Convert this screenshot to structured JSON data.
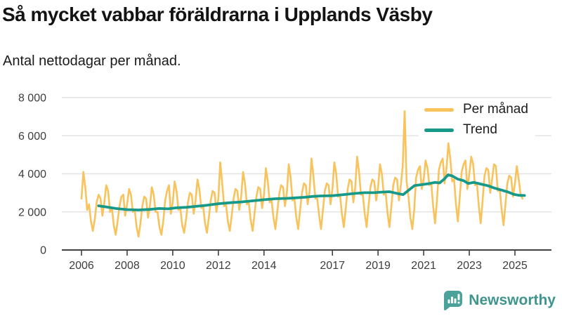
{
  "header": {
    "title": "Så mycket vabbar föräldrarna i Upplands Väsby",
    "subtitle": "Antal nettodagar per månad."
  },
  "chart_data": {
    "type": "line",
    "title": "Så mycket vabbar föräldrarna i Upplands Väsby",
    "ylabel": "Antal nettodagar per månad",
    "x_domain": [
      2006,
      2025.45
    ],
    "y_domain": [
      0,
      8000
    ],
    "grid": "horizontal",
    "legend_position": "top-right",
    "y_ticks": [
      {
        "value": 0,
        "label": "0"
      },
      {
        "value": 2000,
        "label": "2 000"
      },
      {
        "value": 4000,
        "label": "4 000"
      },
      {
        "value": 6000,
        "label": "6 000"
      },
      {
        "value": 8000,
        "label": "8 000"
      }
    ],
    "x_ticks": [
      {
        "value": 2006,
        "label": "2006"
      },
      {
        "value": 2008,
        "label": "2008"
      },
      {
        "value": 2010,
        "label": "2010"
      },
      {
        "value": 2012,
        "label": "2012"
      },
      {
        "value": 2014,
        "label": "2014"
      },
      {
        "value": 2017,
        "label": "2017"
      },
      {
        "value": 2019,
        "label": "2019"
      },
      {
        "value": 2021,
        "label": "2021"
      },
      {
        "value": 2023,
        "label": "2023"
      },
      {
        "value": 2025,
        "label": "2025"
      }
    ],
    "series": [
      {
        "name": "Per månad",
        "color": "#f8c35c",
        "frequency": "monthly",
        "start_year": 2006,
        "start_month": 1,
        "values": [
          2700,
          4100,
          3300,
          2100,
          2400,
          1500,
          1000,
          1600,
          2500,
          2900,
          2700,
          1800,
          2500,
          3400,
          3100,
          2000,
          2200,
          1300,
          800,
          1500,
          2300,
          2800,
          2900,
          1800,
          2400,
          3200,
          2900,
          2000,
          2100,
          1200,
          700,
          1400,
          2300,
          2800,
          2700,
          1700,
          2300,
          3300,
          2900,
          2000,
          2000,
          1200,
          800,
          1500,
          2600,
          3100,
          3400,
          1900,
          2500,
          3600,
          3100,
          2100,
          2200,
          1300,
          900,
          1600,
          2500,
          3000,
          2900,
          1900,
          2600,
          3700,
          3200,
          2200,
          2300,
          1400,
          900,
          1700,
          2600,
          3100,
          3000,
          2000,
          2700,
          4600,
          3500,
          2300,
          2400,
          1500,
          1000,
          1800,
          2700,
          3200,
          3100,
          2100,
          2800,
          4100,
          3500,
          2400,
          2500,
          1600,
          1000,
          1900,
          2800,
          3300,
          3200,
          2200,
          2900,
          4300,
          3600,
          2500,
          2600,
          1700,
          1100,
          2000,
          2900,
          3400,
          3300,
          2300,
          3000,
          4500,
          3800,
          2600,
          2700,
          1700,
          1100,
          2100,
          3000,
          3500,
          3400,
          2400,
          3100,
          4800,
          3900,
          2700,
          2700,
          1800,
          1100,
          2100,
          3100,
          3500,
          3400,
          2400,
          3200,
          4600,
          4000,
          2800,
          2900,
          1900,
          1200,
          2200,
          3200,
          3700,
          3600,
          2500,
          3300,
          4900,
          4100,
          2900,
          2900,
          1900,
          1200,
          2300,
          3300,
          3700,
          3600,
          2600,
          3300,
          4500,
          4000,
          2900,
          3000,
          1900,
          1200,
          2300,
          3400,
          3800,
          3700,
          2600,
          3400,
          4400,
          7300,
          3600,
          2800,
          1700,
          1100,
          2100,
          3800,
          4200,
          4400,
          3200,
          3700,
          4700,
          4300,
          3400,
          3500,
          2300,
          1400,
          2600,
          4200,
          4600,
          4800,
          3500,
          4300,
          5600,
          4800,
          3600,
          3700,
          2400,
          1500,
          2800,
          4100,
          4500,
          4700,
          3200,
          4000,
          4900,
          4500,
          3400,
          3500,
          2300,
          1400,
          2600,
          3900,
          4300,
          4200,
          3000,
          3700,
          4500,
          4400,
          3100,
          3200,
          2100,
          1300,
          2400,
          3500,
          3900,
          3800,
          2800,
          3500,
          4400,
          3700,
          2900,
          2700
        ]
      },
      {
        "name": "Trend",
        "color": "#17998a",
        "description": "smoothed trend of monthly values, read off chart",
        "points": [
          [
            2006.75,
            2320
          ],
          [
            2007.1,
            2260
          ],
          [
            2007.5,
            2180
          ],
          [
            2008.0,
            2120
          ],
          [
            2008.5,
            2100
          ],
          [
            2009.0,
            2130
          ],
          [
            2009.4,
            2180
          ],
          [
            2009.8,
            2160
          ],
          [
            2010.2,
            2220
          ],
          [
            2010.6,
            2240
          ],
          [
            2011.0,
            2290
          ],
          [
            2011.5,
            2350
          ],
          [
            2012.0,
            2430
          ],
          [
            2012.5,
            2480
          ],
          [
            2013.0,
            2520
          ],
          [
            2013.5,
            2580
          ],
          [
            2014.0,
            2640
          ],
          [
            2014.5,
            2690
          ],
          [
            2015.0,
            2710
          ],
          [
            2015.4,
            2740
          ],
          [
            2015.8,
            2770
          ],
          [
            2016.1,
            2810
          ],
          [
            2016.5,
            2840
          ],
          [
            2017.0,
            2850
          ],
          [
            2017.5,
            2910
          ],
          [
            2018.0,
            2970
          ],
          [
            2018.4,
            3010
          ],
          [
            2018.8,
            3010
          ],
          [
            2019.2,
            3040
          ],
          [
            2019.5,
            3060
          ],
          [
            2019.8,
            2980
          ],
          [
            2020.1,
            2910
          ],
          [
            2020.35,
            3150
          ],
          [
            2020.6,
            3380
          ],
          [
            2020.9,
            3430
          ],
          [
            2021.2,
            3480
          ],
          [
            2021.5,
            3550
          ],
          [
            2021.7,
            3520
          ],
          [
            2021.9,
            3720
          ],
          [
            2022.07,
            3950
          ],
          [
            2022.25,
            3890
          ],
          [
            2022.5,
            3720
          ],
          [
            2022.75,
            3640
          ],
          [
            2022.95,
            3490
          ],
          [
            2023.2,
            3550
          ],
          [
            2023.5,
            3460
          ],
          [
            2023.8,
            3380
          ],
          [
            2024.1,
            3250
          ],
          [
            2024.4,
            3150
          ],
          [
            2024.7,
            3040
          ],
          [
            2024.95,
            2920
          ],
          [
            2025.2,
            2870
          ],
          [
            2025.42,
            2860
          ]
        ]
      }
    ]
  },
  "footer": {
    "brand": "Newsworthy",
    "logo_icon": "newsworthy-speech-bubble-bar-chart-icon",
    "brand_color": "#3e958d"
  }
}
